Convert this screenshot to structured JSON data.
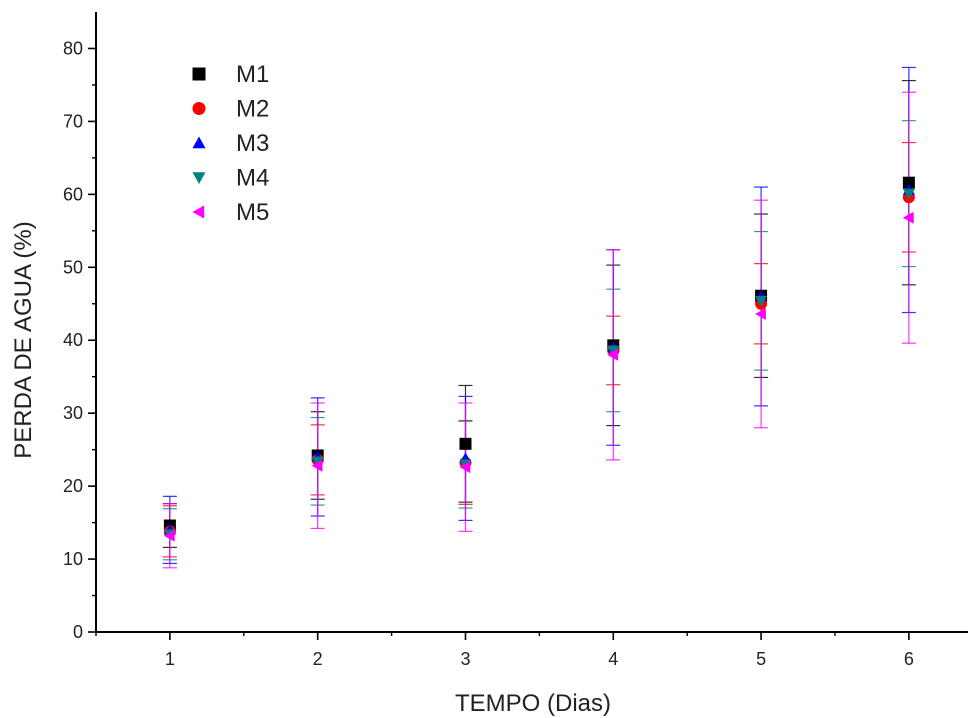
{
  "chart_data": {
    "type": "scatter",
    "xlabel": "TEMPO (Dias)",
    "ylabel": "PERDA DE AGUA (%)",
    "xlim": [
      0.5,
      6.4
    ],
    "ylim": [
      0,
      85
    ],
    "xticks": [
      1,
      2,
      3,
      4,
      5,
      6
    ],
    "yticks": [
      0,
      10,
      20,
      30,
      40,
      50,
      60,
      70,
      80
    ],
    "grid": false,
    "legend": "top-left",
    "x": [
      1,
      2,
      3,
      4,
      5,
      6
    ],
    "series": [
      {
        "name": "M1",
        "marker": "square",
        "color": "#000000",
        "values": [
          14.6,
          24.2,
          25.8,
          39.3,
          46.1,
          61.6
        ],
        "errors": [
          3.0,
          6.0,
          8.0,
          11.0,
          11.2,
          14.0
        ]
      },
      {
        "name": "M2",
        "marker": "circle",
        "color": "#ff0000",
        "values": [
          13.8,
          23.6,
          23.2,
          38.6,
          45.0,
          59.6
        ],
        "errors": [
          3.5,
          4.8,
          5.7,
          4.7,
          5.5,
          7.5
        ]
      },
      {
        "name": "M3",
        "marker": "triangle-up",
        "color": "#0000ff",
        "values": [
          14.0,
          24.0,
          23.8,
          39.0,
          46.0,
          60.6
        ],
        "errors": [
          4.6,
          8.1,
          8.5,
          13.4,
          15.0,
          16.8
        ]
      },
      {
        "name": "M4",
        "marker": "triangle-down",
        "color": "#008080",
        "values": [
          13.4,
          23.4,
          23.0,
          38.6,
          45.4,
          60.1
        ],
        "errors": [
          3.5,
          6.0,
          6.0,
          8.4,
          9.5,
          10.0
        ]
      },
      {
        "name": "M5",
        "marker": "triangle-left",
        "color": "#ff00ff",
        "values": [
          13.2,
          22.8,
          22.6,
          38.0,
          43.6,
          56.8
        ],
        "errors": [
          4.4,
          8.6,
          8.8,
          14.4,
          15.6,
          17.2
        ]
      }
    ]
  }
}
